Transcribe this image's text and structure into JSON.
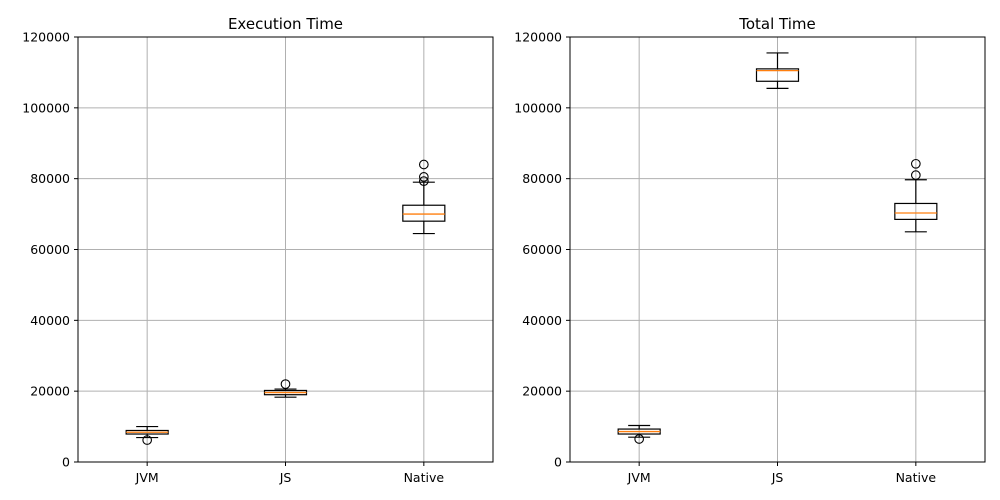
{
  "chart_data": [
    {
      "type": "box",
      "title": "Execution Time",
      "xlabel": "",
      "ylabel": "",
      "ylim": [
        0,
        120000
      ],
      "yticks": [
        0,
        20000,
        40000,
        60000,
        80000,
        100000,
        120000
      ],
      "grid": true,
      "categories": [
        "JVM",
        "JS",
        "Native"
      ],
      "boxes": [
        {
          "category": "JVM",
          "whisker_low": 6900,
          "q1": 7900,
          "median": 8400,
          "q3": 8900,
          "whisker_high": 10000,
          "outliers": [
            6200
          ]
        },
        {
          "category": "JS",
          "whisker_low": 18300,
          "q1": 19000,
          "median": 19600,
          "q3": 20200,
          "whisker_high": 20600,
          "outliers": [
            22000
          ]
        },
        {
          "category": "Native",
          "whisker_low": 64500,
          "q1": 68000,
          "median": 70000,
          "q3": 72500,
          "whisker_high": 79000,
          "outliers": [
            79300,
            80500,
            84000
          ]
        }
      ]
    },
    {
      "type": "box",
      "title": "Total Time",
      "xlabel": "",
      "ylabel": "",
      "ylim": [
        0,
        120000
      ],
      "yticks": [
        0,
        20000,
        40000,
        60000,
        80000,
        100000,
        120000
      ],
      "grid": true,
      "categories": [
        "JVM",
        "JS",
        "Native"
      ],
      "boxes": [
        {
          "category": "JVM",
          "whisker_low": 7000,
          "q1": 7900,
          "median": 8600,
          "q3": 9300,
          "whisker_high": 10300,
          "outliers": [
            6500
          ]
        },
        {
          "category": "JS",
          "whisker_low": 105500,
          "q1": 107500,
          "median": 110500,
          "q3": 111000,
          "whisker_high": 115500,
          "outliers": []
        },
        {
          "category": "Native",
          "whisker_low": 65000,
          "q1": 68500,
          "median": 70300,
          "q3": 73000,
          "whisker_high": 79700,
          "outliers": [
            81000,
            84200
          ]
        }
      ]
    }
  ],
  "colors": {
    "median": "#ff7f0e",
    "box": "#000000",
    "grid": "#b0b0b0"
  }
}
